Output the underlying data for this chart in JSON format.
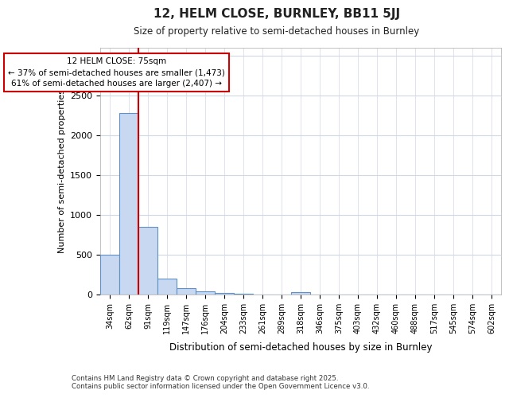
{
  "title1": "12, HELM CLOSE, BURNLEY, BB11 5JJ",
  "title2": "Size of property relative to semi-detached houses in Burnley",
  "xlabel": "Distribution of semi-detached houses by size in Burnley",
  "ylabel": "Number of semi-detached properties",
  "annotation_title": "12 HELM CLOSE: 75sqm",
  "annotation_line1": "← 37% of semi-detached houses are smaller (1,473)",
  "annotation_line2": "61% of semi-detached houses are larger (2,407) →",
  "footer1": "Contains HM Land Registry data © Crown copyright and database right 2025.",
  "footer2": "Contains public sector information licensed under the Open Government Licence v3.0.",
  "categories": [
    "34sqm",
    "62sqm",
    "91sqm",
    "119sqm",
    "147sqm",
    "176sqm",
    "204sqm",
    "233sqm",
    "261sqm",
    "289sqm",
    "318sqm",
    "346sqm",
    "375sqm",
    "403sqm",
    "432sqm",
    "460sqm",
    "488sqm",
    "517sqm",
    "545sqm",
    "574sqm",
    "602sqm"
  ],
  "values": [
    500,
    2280,
    850,
    200,
    85,
    40,
    25,
    15,
    0,
    0,
    30,
    0,
    0,
    0,
    0,
    0,
    0,
    0,
    0,
    0,
    0
  ],
  "bar_color": "#c8d8f0",
  "bar_edge_color": "#6090c8",
  "highlight_color": "#cc0000",
  "ylim": [
    0,
    3100
  ],
  "property_bin_index": 1,
  "bg_color": "#ffffff",
  "plot_bg": "#ffffff",
  "grid_color": "#d0d8e8"
}
